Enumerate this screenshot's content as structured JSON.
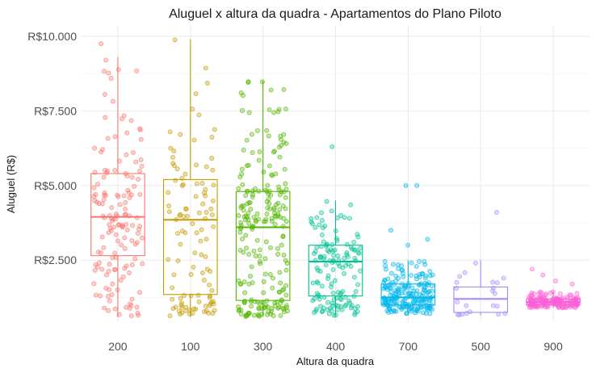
{
  "chart_data": {
    "type": "box",
    "title": "Aluguel x altura da quadra - Apartamentos do Plano Piloto",
    "xlabel": "Altura da quadra",
    "ylabel": "Aluguel (R$)",
    "categories": [
      "200",
      "100",
      "300",
      "400",
      "700",
      "500",
      "900"
    ],
    "y_ticks": [
      2500,
      5000,
      7500,
      10000
    ],
    "y_tick_labels": [
      "R$2.500",
      "R$5.000",
      "R$7.500",
      "R$10.000"
    ],
    "ylim": [
      450,
      10350
    ],
    "grid": true,
    "legend": "none",
    "colors": [
      "#F8766D",
      "#C49A00",
      "#53B400",
      "#00C094",
      "#00B6EB",
      "#A58AFF",
      "#FB61D7"
    ],
    "boxes": [
      {
        "category": "200",
        "min": 600,
        "q1": 2650,
        "median": 3950,
        "q3": 5400,
        "max": 9300
      },
      {
        "category": "100",
        "min": 600,
        "q1": 1350,
        "median": 3850,
        "q3": 5200,
        "max": 9900
      },
      {
        "category": "300",
        "min": 600,
        "q1": 1150,
        "median": 3600,
        "q3": 4800,
        "max": 8500
      },
      {
        "category": "400",
        "min": 650,
        "q1": 1300,
        "median": 2450,
        "q3": 3000,
        "max": 4500
      },
      {
        "category": "700",
        "min": 700,
        "q1": 1000,
        "median": 1250,
        "q3": 1700,
        "max": 2500
      },
      {
        "category": "500",
        "min": 650,
        "q1": 750,
        "median": 1200,
        "q3": 1600,
        "max": 2500
      },
      {
        "category": "900",
        "min": 900,
        "q1": 1000,
        "median": 1100,
        "q3": 1200,
        "max": 1450
      }
    ],
    "outliers": [
      {
        "category": "200",
        "values": [
          9750
        ]
      },
      {
        "category": "400",
        "values": [
          6300
        ]
      },
      {
        "category": "700",
        "values": [
          5000,
          5000,
          3500,
          3200,
          3000
        ]
      },
      {
        "category": "500",
        "values": [
          4100
        ]
      },
      {
        "category": "900",
        "values": [
          2200,
          2000,
          1800,
          1700
        ]
      }
    ]
  }
}
